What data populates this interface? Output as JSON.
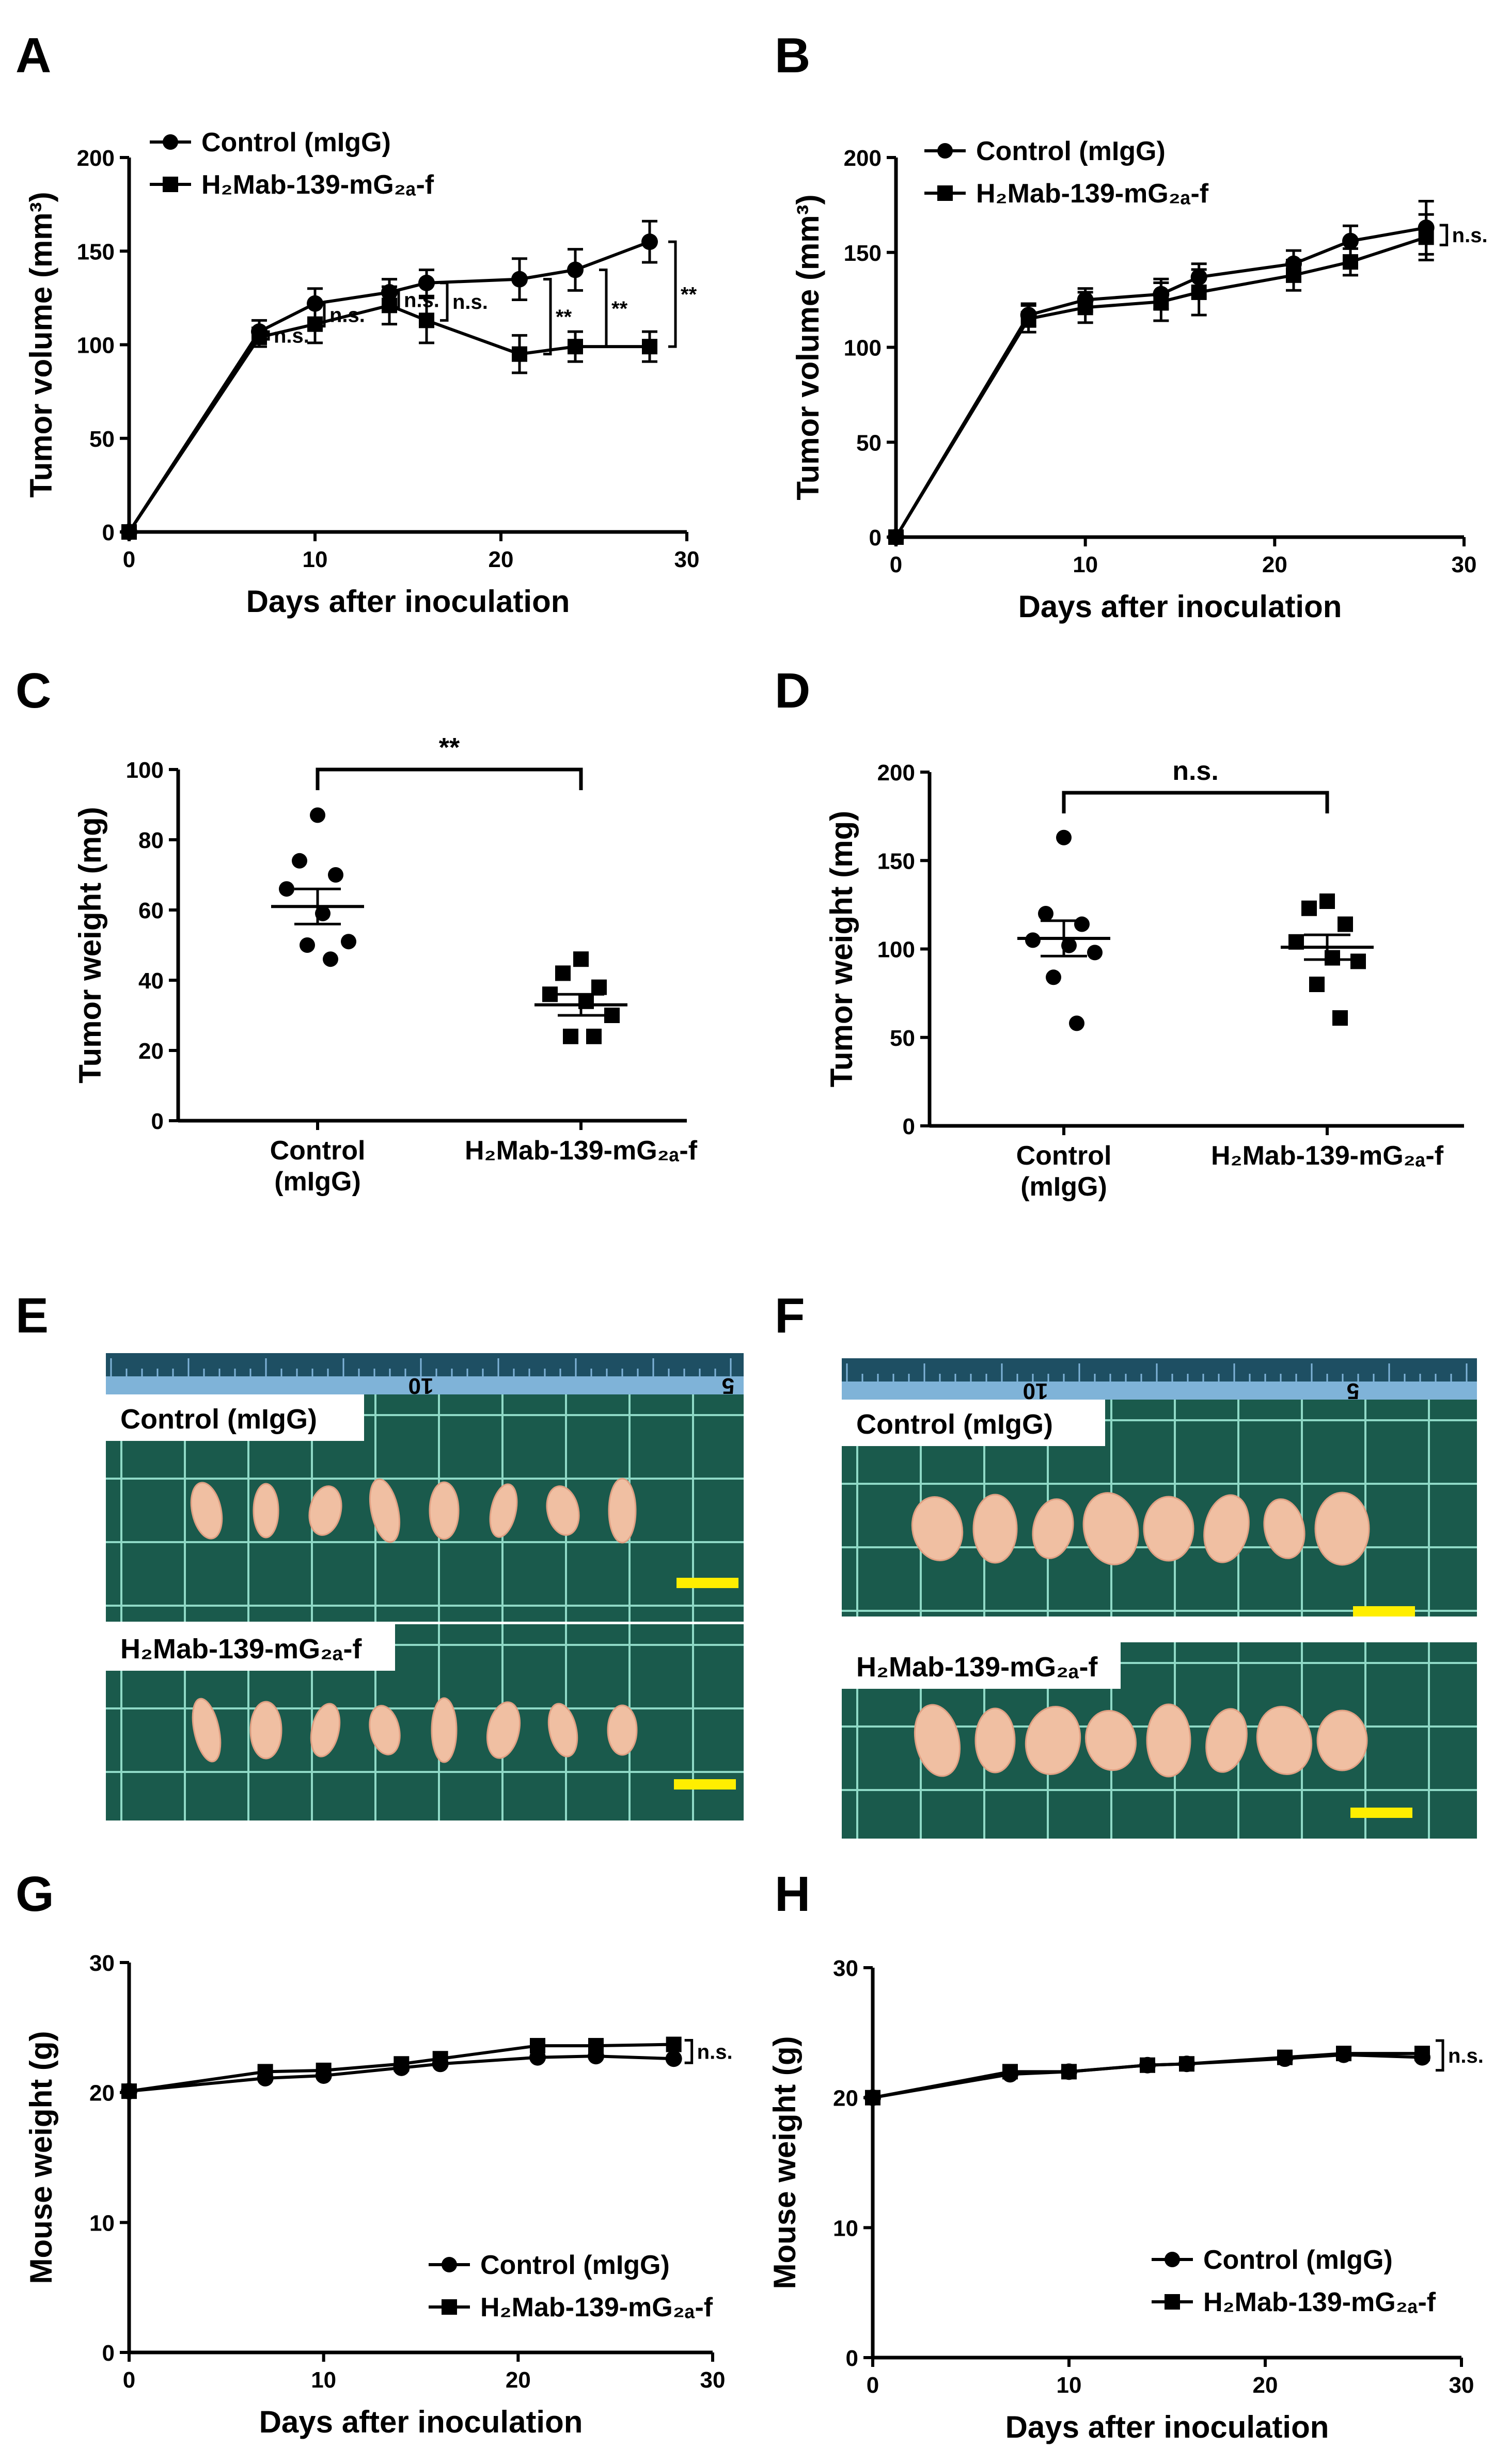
{
  "panel_letters": [
    "A",
    "B",
    "C",
    "D",
    "E",
    "F",
    "G",
    "H"
  ],
  "colors": {
    "ink": "#000000",
    "photo_bg": "#1a5a4c",
    "grid_line": "#8fd9c6",
    "ruler": "#7fb3d8",
    "scale_bar": "#ffee00",
    "tumor": "#f0bfa2",
    "label_bg": "#ffffff"
  },
  "chart_data": [
    {
      "panel": "A",
      "type": "line",
      "xlabel": "Days after inoculation",
      "ylabel": "Tumor volume (mm³)",
      "xlim": [
        0,
        30
      ],
      "ylim": [
        0,
        200
      ],
      "xticks": [
        "0",
        "10",
        "20",
        "30"
      ],
      "yticks": [
        "0",
        "50",
        "100",
        "150",
        "200"
      ],
      "x": [
        0,
        7,
        10,
        14,
        16,
        21,
        24,
        28
      ],
      "series": [
        {
          "name": "Control (mIgG)",
          "marker": "circle",
          "values": [
            0,
            107,
            122,
            128,
            133,
            135,
            140,
            155
          ],
          "errors": [
            0,
            6,
            8,
            7,
            7,
            11,
            11,
            11
          ]
        },
        {
          "name": "H₂Mab-139-mG₂ₐ-f",
          "marker": "square",
          "values": [
            0,
            104,
            111,
            121,
            113,
            95,
            99,
            99
          ],
          "errors": [
            0,
            5,
            10,
            10,
            12,
            10,
            8,
            8
          ]
        }
      ],
      "annotations": [
        {
          "text": "n.s.",
          "x": 7
        },
        {
          "text": "n.s.",
          "x": 10
        },
        {
          "text": "n.s.",
          "x": 14
        },
        {
          "text": "n.s.",
          "x": 16
        },
        {
          "text": "**",
          "x": 21
        },
        {
          "text": "**",
          "x": 24
        },
        {
          "text": "**",
          "x": 28
        }
      ]
    },
    {
      "panel": "B",
      "type": "line",
      "xlabel": "Days after inoculation",
      "ylabel": "Tumor volume (mm³)",
      "xlim": [
        0,
        30
      ],
      "ylim": [
        0,
        200
      ],
      "xticks": [
        "0",
        "10",
        "20",
        "30"
      ],
      "yticks": [
        "0",
        "50",
        "100",
        "150",
        "200"
      ],
      "x": [
        0,
        7,
        10,
        14,
        16,
        21,
        24,
        28
      ],
      "series": [
        {
          "name": "Control (mIgG)",
          "marker": "circle",
          "values": [
            0,
            117,
            125,
            128,
            137,
            144,
            156,
            163
          ],
          "errors": [
            0,
            6,
            6,
            8,
            7,
            7,
            8,
            14
          ]
        },
        {
          "name": "H₂Mab-139-mG₂ₐ-f",
          "marker": "square",
          "values": [
            0,
            115,
            121,
            124,
            129,
            138,
            145,
            158
          ],
          "errors": [
            0,
            7,
            8,
            10,
            12,
            8,
            7,
            12
          ]
        }
      ],
      "annotations": [
        {
          "text": "n.s.",
          "x": 28
        }
      ]
    },
    {
      "panel": "C",
      "type": "scatter",
      "ylabel": "Tumor weight (mg)",
      "ylim": [
        0,
        100
      ],
      "yticks": [
        "0",
        "20",
        "40",
        "60",
        "80",
        "100"
      ],
      "categories": [
        "Control (mIgG)",
        "H₂Mab-139-mG₂ₐ-f"
      ],
      "category_lines": [
        [
          "Control",
          "(mIgG)"
        ],
        [
          "H₂Mab-139-mG₂ₐ-f"
        ]
      ],
      "points": [
        [
          87,
          74,
          70,
          66,
          59,
          51,
          50,
          46
        ],
        [
          46,
          42,
          38,
          36,
          34,
          30,
          24,
          24
        ]
      ],
      "means": [
        61,
        33
      ],
      "sem": [
        5,
        3
      ],
      "significance": "**"
    },
    {
      "panel": "D",
      "type": "scatter",
      "ylabel": "Tumor weight (mg)",
      "ylim": [
        0,
        200
      ],
      "yticks": [
        "0",
        "50",
        "100",
        "150",
        "200"
      ],
      "categories": [
        "Control (mIgG)",
        "H₂Mab-139-mG₂ₐ-f"
      ],
      "category_lines": [
        [
          "Control",
          "(mIgG)"
        ],
        [
          "H₂Mab-139-mG₂ₐ-f"
        ]
      ],
      "points": [
        [
          163,
          120,
          114,
          105,
          102,
          98,
          84,
          58
        ],
        [
          127,
          123,
          114,
          104,
          95,
          93,
          80,
          61
        ]
      ],
      "means": [
        106,
        101
      ],
      "sem": [
        10,
        7
      ],
      "significance": "n.s."
    },
    {
      "panel": "G",
      "type": "line",
      "xlabel": "Days after inoculation",
      "ylabel": "Mouse weight (g)",
      "xlim": [
        0,
        30
      ],
      "ylim": [
        0,
        30
      ],
      "xticks": [
        "0",
        "10",
        "20",
        "30"
      ],
      "yticks": [
        "0",
        "10",
        "20",
        "30"
      ],
      "x": [
        0,
        7,
        10,
        14,
        16,
        21,
        24,
        28
      ],
      "series": [
        {
          "name": "Control (mIgG)",
          "marker": "circle",
          "values": [
            20.1,
            21.1,
            21.3,
            21.9,
            22.2,
            22.7,
            22.8,
            22.6
          ]
        },
        {
          "name": "H₂Mab-139-mG₂ₐ-f",
          "marker": "square",
          "values": [
            20.1,
            21.6,
            21.7,
            22.2,
            22.6,
            23.6,
            23.6,
            23.7
          ]
        }
      ],
      "annotations": [
        {
          "text": "n.s.",
          "x": 28
        }
      ]
    },
    {
      "panel": "H",
      "type": "line",
      "xlabel": "Days after inoculation",
      "ylabel": "Mouse weight (g)",
      "xlim": [
        0,
        30
      ],
      "ylim": [
        0,
        30
      ],
      "xticks": [
        "0",
        "10",
        "20",
        "30"
      ],
      "yticks": [
        "0",
        "10",
        "20",
        "30"
      ],
      "x": [
        0,
        7,
        10,
        14,
        16,
        21,
        24,
        28
      ],
      "series": [
        {
          "name": "Control (mIgG)",
          "marker": "circle",
          "values": [
            20.0,
            21.8,
            22.0,
            22.5,
            22.6,
            23.0,
            23.3,
            23.1
          ]
        },
        {
          "name": "H₂Mab-139-mG₂ₐ-f",
          "marker": "square",
          "values": [
            20.0,
            22.0,
            22.0,
            22.5,
            22.6,
            23.1,
            23.4,
            23.4
          ]
        }
      ],
      "annotations": [
        {
          "text": "n.s.",
          "x": 28
        }
      ]
    }
  ],
  "photos": [
    {
      "panel": "E",
      "ruler_marks": [
        "10",
        "5"
      ],
      "control_label": "Control (mIgG)",
      "treated_label": "H₂Mab-139-mG₂ₐ-f",
      "control_tumor_count": 8,
      "treated_tumor_count": 8
    },
    {
      "panel": "F",
      "ruler_marks": [
        "10",
        "5"
      ],
      "control_label": "Control (mIgG)",
      "treated_label": "H₂Mab-139-mG₂ₐ-f",
      "control_tumor_count": 8,
      "treated_tumor_count": 8
    }
  ]
}
